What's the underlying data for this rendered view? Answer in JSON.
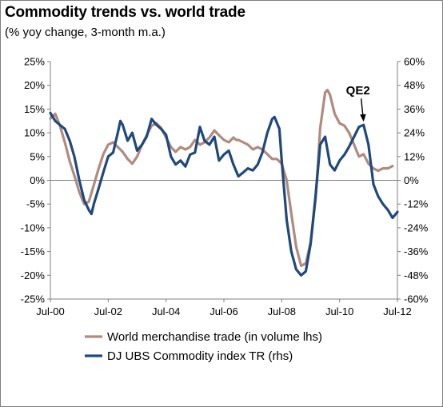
{
  "header": {
    "title": "Commodity trends vs. world trade",
    "subtitle": "(% yoy change, 3-month m.a.)"
  },
  "colors": {
    "series1": "#B08B7E",
    "series2": "#1F497D",
    "grid": "#d9d9d9",
    "axis": "#808080"
  },
  "chart_data": {
    "type": "line",
    "title": "Commodity trends vs. world trade",
    "subtitle": "(% yoy change, 3-month m.a.)",
    "x_range": [
      2000.5,
      2012.5
    ],
    "x_tick_values": [
      2000.5,
      2002.5,
      2004.5,
      2006.5,
      2008.5,
      2010.5,
      2012.5
    ],
    "x_tick_labels": [
      "Jul-00",
      "Jul-02",
      "Jul-04",
      "Jul-06",
      "Jul-08",
      "Jul-10",
      "Jul-12"
    ],
    "ylim_left": [
      -25,
      25
    ],
    "y_tick_values_left": [
      -25,
      -20,
      -15,
      -10,
      -5,
      0,
      5,
      10,
      15,
      20,
      25
    ],
    "y_tick_labels_left": [
      "-25%",
      "-20%",
      "-15%",
      "-10%",
      "-5%",
      "0%",
      "5%",
      "10%",
      "15%",
      "20%",
      "25%"
    ],
    "ylim_right": [
      -60,
      60
    ],
    "y_tick_values_right": [
      -60,
      -48,
      -36,
      -24,
      -12,
      0,
      12,
      24,
      36,
      48,
      60
    ],
    "y_tick_labels_right": [
      "-60%",
      "-48%",
      "-36%",
      "-24%",
      "-12%",
      "0%",
      "12%",
      "24%",
      "36%",
      "48%",
      "60%"
    ],
    "grid": false,
    "legend_position": "bottom",
    "series": [
      {
        "name": "World merchandise trade (in volume lhs)",
        "axis": "left",
        "points": [
          [
            2000.5,
            13.0
          ],
          [
            2000.67,
            14.0
          ],
          [
            2000.83,
            11.5
          ],
          [
            2001.0,
            8.0
          ],
          [
            2001.17,
            4.0
          ],
          [
            2001.33,
            1.0
          ],
          [
            2001.5,
            -2.5
          ],
          [
            2001.67,
            -5.0
          ],
          [
            2001.83,
            -4.5
          ],
          [
            2002.0,
            -1.0
          ],
          [
            2002.17,
            2.5
          ],
          [
            2002.33,
            5.5
          ],
          [
            2002.5,
            7.5
          ],
          [
            2002.67,
            8.0
          ],
          [
            2002.83,
            7.0
          ],
          [
            2003.0,
            6.0
          ],
          [
            2003.17,
            4.5
          ],
          [
            2003.33,
            3.5
          ],
          [
            2003.5,
            5.0
          ],
          [
            2003.67,
            7.5
          ],
          [
            2003.83,
            9.5
          ],
          [
            2004.0,
            11.5
          ],
          [
            2004.17,
            12.0
          ],
          [
            2004.33,
            11.0
          ],
          [
            2004.5,
            9.0
          ],
          [
            2004.67,
            7.0
          ],
          [
            2004.83,
            6.0
          ],
          [
            2005.0,
            7.0
          ],
          [
            2005.17,
            6.5
          ],
          [
            2005.33,
            7.0
          ],
          [
            2005.5,
            8.5
          ],
          [
            2005.67,
            7.5
          ],
          [
            2005.83,
            8.0
          ],
          [
            2006.0,
            9.0
          ],
          [
            2006.17,
            10.5
          ],
          [
            2006.33,
            9.5
          ],
          [
            2006.5,
            8.5
          ],
          [
            2006.67,
            8.0
          ],
          [
            2006.83,
            9.0
          ],
          [
            2006.92,
            8.5
          ],
          [
            2007.0,
            8.5
          ],
          [
            2007.17,
            8.0
          ],
          [
            2007.33,
            7.5
          ],
          [
            2007.5,
            6.5
          ],
          [
            2007.67,
            7.0
          ],
          [
            2007.83,
            6.5
          ],
          [
            2008.0,
            5.5
          ],
          [
            2008.17,
            4.5
          ],
          [
            2008.33,
            4.5
          ],
          [
            2008.5,
            3.5
          ],
          [
            2008.67,
            0.0
          ],
          [
            2008.83,
            -7.0
          ],
          [
            2009.0,
            -14.0
          ],
          [
            2009.17,
            -18.0
          ],
          [
            2009.33,
            -17.5
          ],
          [
            2009.5,
            -13.0
          ],
          [
            2009.67,
            -4.0
          ],
          [
            2009.75,
            3.0
          ],
          [
            2009.83,
            11.0
          ],
          [
            2010.0,
            18.5
          ],
          [
            2010.08,
            19.0
          ],
          [
            2010.17,
            18.0
          ],
          [
            2010.33,
            14.0
          ],
          [
            2010.5,
            12.0
          ],
          [
            2010.67,
            11.5
          ],
          [
            2010.83,
            10.0
          ],
          [
            2011.0,
            7.5
          ],
          [
            2011.17,
            5.0
          ],
          [
            2011.33,
            5.5
          ],
          [
            2011.5,
            3.5
          ],
          [
            2011.67,
            2.5
          ],
          [
            2011.83,
            2.0
          ],
          [
            2012.0,
            2.5
          ],
          [
            2012.17,
            2.5
          ],
          [
            2012.33,
            3.0
          ]
        ]
      },
      {
        "name": "DJ UBS Commodity index TR (rhs)",
        "axis": "right",
        "points": [
          [
            2000.5,
            34
          ],
          [
            2000.67,
            30
          ],
          [
            2000.83,
            28
          ],
          [
            2001.0,
            26
          ],
          [
            2001.17,
            20
          ],
          [
            2001.33,
            12
          ],
          [
            2001.5,
            0
          ],
          [
            2001.67,
            -10
          ],
          [
            2001.83,
            -15
          ],
          [
            2001.92,
            -17
          ],
          [
            2002.0,
            -12
          ],
          [
            2002.17,
            -4
          ],
          [
            2002.33,
            4
          ],
          [
            2002.5,
            12
          ],
          [
            2002.67,
            14
          ],
          [
            2002.83,
            24
          ],
          [
            2002.92,
            30
          ],
          [
            2003.0,
            28
          ],
          [
            2003.17,
            20
          ],
          [
            2003.33,
            24
          ],
          [
            2003.5,
            15
          ],
          [
            2003.67,
            18
          ],
          [
            2003.83,
            22
          ],
          [
            2004.0,
            31
          ],
          [
            2004.17,
            28
          ],
          [
            2004.33,
            26
          ],
          [
            2004.5,
            23
          ],
          [
            2004.67,
            12
          ],
          [
            2004.83,
            8
          ],
          [
            2005.0,
            10
          ],
          [
            2005.17,
            7
          ],
          [
            2005.33,
            13
          ],
          [
            2005.5,
            14
          ],
          [
            2005.67,
            27
          ],
          [
            2005.83,
            20
          ],
          [
            2006.0,
            18
          ],
          [
            2006.17,
            22
          ],
          [
            2006.33,
            10
          ],
          [
            2006.5,
            13
          ],
          [
            2006.67,
            15
          ],
          [
            2006.83,
            8
          ],
          [
            2007.0,
            2
          ],
          [
            2007.17,
            4
          ],
          [
            2007.33,
            6
          ],
          [
            2007.5,
            5
          ],
          [
            2007.67,
            8
          ],
          [
            2007.83,
            14
          ],
          [
            2008.0,
            24
          ],
          [
            2008.17,
            31
          ],
          [
            2008.25,
            32
          ],
          [
            2008.42,
            26
          ],
          [
            2008.5,
            10
          ],
          [
            2008.67,
            -20
          ],
          [
            2008.83,
            -36
          ],
          [
            2009.0,
            -45
          ],
          [
            2009.17,
            -48
          ],
          [
            2009.33,
            -46
          ],
          [
            2009.5,
            -32
          ],
          [
            2009.67,
            -8
          ],
          [
            2009.83,
            18
          ],
          [
            2010.0,
            22
          ],
          [
            2010.17,
            8
          ],
          [
            2010.33,
            5
          ],
          [
            2010.5,
            10
          ],
          [
            2010.67,
            13
          ],
          [
            2010.83,
            17
          ],
          [
            2011.0,
            22
          ],
          [
            2011.17,
            27
          ],
          [
            2011.33,
            28
          ],
          [
            2011.5,
            18
          ],
          [
            2011.67,
            -2
          ],
          [
            2011.83,
            -8
          ],
          [
            2012.0,
            -12
          ],
          [
            2012.17,
            -15
          ],
          [
            2012.33,
            -19
          ],
          [
            2012.5,
            -16
          ]
        ]
      }
    ],
    "annotations": [
      {
        "text": "QE2",
        "x": 2011.33,
        "y_right": 28
      }
    ]
  }
}
